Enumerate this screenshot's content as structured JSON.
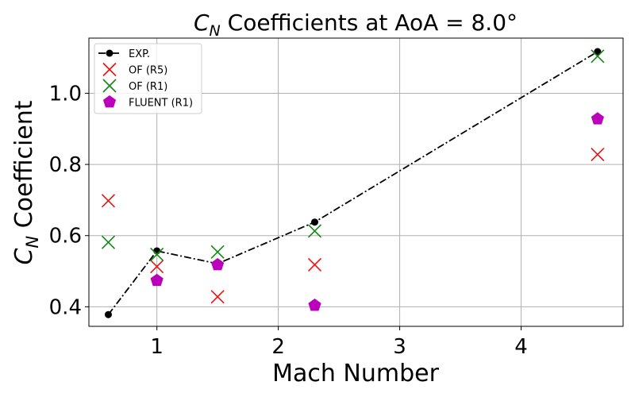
{
  "chart_data": {
    "type": "scatter",
    "title": {
      "symbol": "C",
      "subscript": "N",
      "rest": " Coefficients at AoA = 8.0°"
    },
    "xlabel": "Mach Number",
    "ylabel": {
      "symbol": "C",
      "subscript": "N",
      "rest": " Coefficient"
    },
    "xlim": [
      0.44,
      4.84
    ],
    "ylim": [
      0.345,
      1.155
    ],
    "xticks": [
      1,
      2,
      3,
      4
    ],
    "xtick_labels": [
      "1",
      "2",
      "3",
      "4"
    ],
    "yticks": [
      0.4,
      0.6,
      0.8,
      1.0
    ],
    "ytick_labels": [
      "0.4",
      "0.6",
      "0.8",
      "1.0"
    ],
    "grid": true,
    "legend_position": "top-left",
    "series": [
      {
        "name": "EXP.",
        "marker": "dot-line",
        "color": "#000000",
        "x": [
          0.6,
          1.0,
          1.5,
          2.3,
          4.63
        ],
        "y": [
          0.378,
          0.557,
          0.521,
          0.638,
          1.117
        ]
      },
      {
        "name": "OF (R5)",
        "marker": "x",
        "color": "#ee1111",
        "x": [
          0.6,
          1.0,
          1.5,
          2.3,
          4.63
        ],
        "y": [
          0.698,
          0.513,
          0.428,
          0.518,
          0.828
        ]
      },
      {
        "name": "OF (R1)",
        "marker": "x",
        "color": "#118811",
        "x": [
          0.6,
          1.0,
          1.5,
          2.3,
          4.63
        ],
        "y": [
          0.581,
          0.547,
          0.554,
          0.613,
          1.104
        ]
      },
      {
        "name": "FLUENT (R1)",
        "marker": "pentagon",
        "color": "#bb00bb",
        "x": [
          1.0,
          1.5,
          2.3,
          4.63
        ],
        "y": [
          0.474,
          0.518,
          0.404,
          0.928
        ]
      }
    ]
  }
}
